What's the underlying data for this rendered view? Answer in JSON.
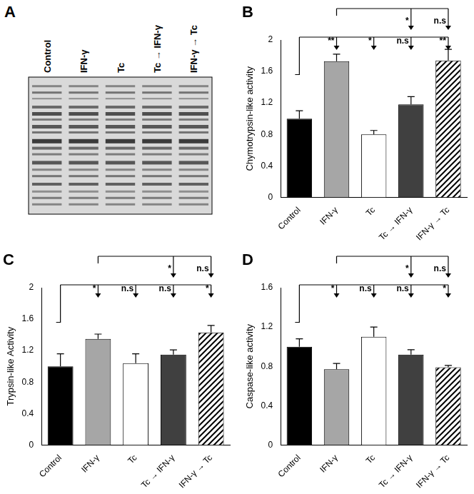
{
  "gel": {
    "panel": "A",
    "lanes": [
      "Control",
      "IFN-γ",
      "Tc",
      "Tc → IFN-γ",
      "IFN-γ → Tc"
    ]
  },
  "chart_data": [
    {
      "type": "bar",
      "panel": "B",
      "y_label": "Chymotrypsin-like activity",
      "categories": [
        "Control",
        "IFN-γ",
        "Tc",
        "Tc → IFN-γ",
        "IFN-γ → Tc"
      ],
      "values": [
        1.0,
        1.73,
        0.8,
        1.18,
        1.74
      ],
      "errors": [
        0.1,
        0.09,
        0.05,
        0.1,
        0.14
      ],
      "colors": [
        "#000000",
        "#a6a6a6",
        "#ffffff",
        "#404040",
        "#ffffff"
      ],
      "ylim": [
        0,
        2
      ],
      "yticks": [
        0,
        0.4,
        0.8,
        1.2,
        1.6,
        2
      ],
      "grid": false,
      "comparisons": [
        {
          "reference": "Control",
          "targets": [
            "IFN-γ",
            "Tc",
            "Tc → IFN-γ",
            "IFN-γ → Tc"
          ],
          "labels": [
            "**",
            "*",
            "n.s",
            "**"
          ]
        },
        {
          "reference": "IFN-γ",
          "targets": [
            "Tc → IFN-γ",
            "IFN-γ → Tc"
          ],
          "labels": [
            "*",
            "n.s"
          ]
        }
      ]
    },
    {
      "type": "bar",
      "panel": "C",
      "y_label": "Trypsin-like Activity",
      "categories": [
        "Control",
        "IFN-γ",
        "Tc",
        "Tc → IFN-γ",
        "IFN-γ → Tc"
      ],
      "values": [
        1.0,
        1.35,
        1.04,
        1.15,
        1.43
      ],
      "errors": [
        0.16,
        0.06,
        0.12,
        0.06,
        0.09
      ],
      "colors": [
        "#000000",
        "#a6a6a6",
        "#ffffff",
        "#404040",
        "#ffffff"
      ],
      "ylim": [
        0,
        2
      ],
      "yticks": [
        0,
        0.4,
        0.8,
        1.2,
        1.6,
        2
      ],
      "grid": false,
      "comparisons": [
        {
          "reference": "Control",
          "targets": [
            "IFN-γ",
            "Tc",
            "Tc → IFN-γ",
            "IFN-γ → Tc"
          ],
          "labels": [
            "*",
            "n.s",
            "n.s",
            "*"
          ]
        },
        {
          "reference": "IFN-γ",
          "targets": [
            "Tc → IFN-γ",
            "IFN-γ → Tc"
          ],
          "labels": [
            "*",
            "n.s"
          ]
        }
      ]
    },
    {
      "type": "bar",
      "panel": "D",
      "y_label": "Caspase-like activity",
      "categories": [
        "Control",
        "IFN-γ",
        "Tc",
        "Tc → IFN-γ",
        "IFN-γ → Tc"
      ],
      "values": [
        1.0,
        0.77,
        1.1,
        0.92,
        0.79
      ],
      "errors": [
        0.08,
        0.06,
        0.1,
        0.05,
        0.02
      ],
      "colors": [
        "#000000",
        "#a6a6a6",
        "#ffffff",
        "#404040",
        "#ffffff"
      ],
      "ylim": [
        0,
        1.6
      ],
      "yticks": [
        0,
        0.4,
        0.8,
        1.2,
        1.6
      ],
      "grid": false,
      "comparisons": [
        {
          "reference": "Control",
          "targets": [
            "IFN-γ",
            "Tc",
            "Tc → IFN-γ",
            "IFN-γ → Tc"
          ],
          "labels": [
            "*",
            "n.s",
            "n.s",
            "*"
          ]
        },
        {
          "reference": "IFN-γ",
          "targets": [
            "Tc → IFN-γ",
            "IFN-γ → Tc"
          ],
          "labels": [
            "*",
            "n.s"
          ]
        }
      ]
    }
  ]
}
